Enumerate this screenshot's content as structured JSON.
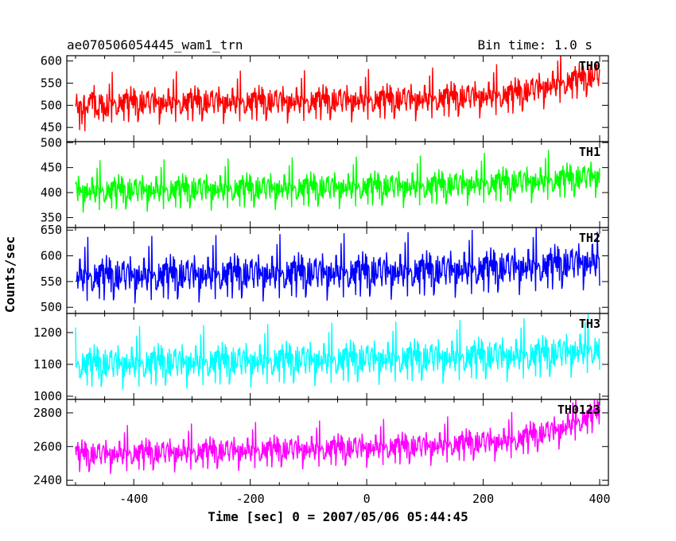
{
  "chart_data": {
    "type": "line",
    "title": "ae070506054445_wam1_trn",
    "bin_label": "Bin time: 1.0 s",
    "xlabel": "Time [sec] 0 = 2007/05/06 05:44:45",
    "ylabel": "Counts/sec",
    "xlim": [
      -515,
      415
    ],
    "x_ticks": [
      -400,
      -200,
      0,
      200,
      400
    ],
    "x_data_range": [
      -500,
      400
    ],
    "grid": false,
    "panels": [
      {
        "name": "TH0",
        "color": "#ff0000",
        "ylim": [
          418,
          612
        ],
        "y_ticks": [
          450,
          500,
          550,
          600
        ],
        "trend": [
          [
            -500,
            495
          ],
          [
            -300,
            498
          ],
          [
            -100,
            500
          ],
          [
            100,
            505
          ],
          [
            250,
            515
          ],
          [
            330,
            540
          ],
          [
            400,
            560
          ]
        ],
        "noise_sd": 23
      },
      {
        "name": "TH1",
        "color": "#00ff00",
        "ylim": [
          330,
          502
        ],
        "y_ticks": [
          350,
          400,
          450,
          500
        ],
        "trend": [
          [
            -500,
            395
          ],
          [
            -200,
            400
          ],
          [
            100,
            405
          ],
          [
            300,
            415
          ],
          [
            400,
            425
          ]
        ],
        "noise_sd": 20
      },
      {
        "name": "TH2",
        "color": "#0000ff",
        "ylim": [
          488,
          655
        ],
        "y_ticks": [
          500,
          550,
          600,
          650
        ],
        "trend": [
          [
            -500,
            550
          ],
          [
            -200,
            555
          ],
          [
            100,
            560
          ],
          [
            300,
            570
          ],
          [
            400,
            580
          ]
        ],
        "noise_sd": 25
      },
      {
        "name": "TH3",
        "color": "#00ffff",
        "ylim": [
          990,
          1260
        ],
        "y_ticks": [
          1000,
          1100,
          1200
        ],
        "trend": [
          [
            -500,
            1085
          ],
          [
            -200,
            1095
          ],
          [
            100,
            1105
          ],
          [
            300,
            1115
          ],
          [
            400,
            1135
          ]
        ],
        "noise_sd": 38
      },
      {
        "name": "TH0123",
        "color": "#ff00ff",
        "ylim": [
          2370,
          2880
        ],
        "y_ticks": [
          2400,
          2600,
          2800
        ],
        "trend": [
          [
            -500,
            2530
          ],
          [
            -200,
            2555
          ],
          [
            100,
            2580
          ],
          [
            250,
            2615
          ],
          [
            330,
            2680
          ],
          [
            400,
            2780
          ]
        ],
        "noise_sd": 55
      }
    ]
  }
}
